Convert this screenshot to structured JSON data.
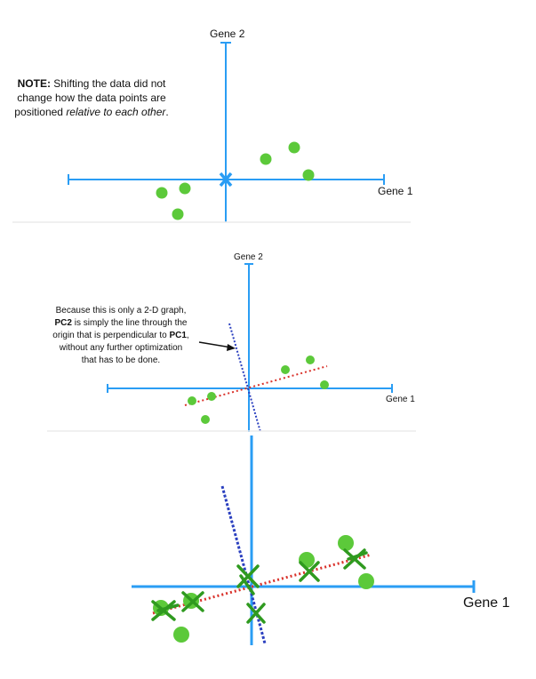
{
  "panel1": {
    "y_axis_label": "Gene 2",
    "x_axis_label": "Gene 1",
    "note": {
      "prefix": "NOTE:",
      "text_a": " Shifting the data did not change how the data points are positioned ",
      "emphasis": "relative to each other",
      "text_b": "."
    },
    "colors": {
      "axis": "#2a9df4",
      "points": "#5cc93a",
      "origin_marker": "#2a9df4"
    },
    "origin_marker_icon": "x-mark-icon"
  },
  "panel2": {
    "y_axis_label": "Gene 2",
    "x_axis_label": "Gene 1",
    "note": {
      "text_a": "Because this is only a 2-D graph, ",
      "pc2": "PC2",
      "text_b": " is simply the line through the origin that is perpendicular to ",
      "pc1": "PC1",
      "text_c": ", without any further optimization that has to be done."
    },
    "colors": {
      "axis": "#2a9df4",
      "points": "#5cc93a",
      "pc1_line": "#d9322b",
      "pc2_line": "#2a3fbf",
      "arrow": "#111111"
    }
  },
  "panel3": {
    "x_axis_label": "Gene 1",
    "colors": {
      "axis": "#2a9df4",
      "points": "#5cc93a",
      "projections": "#2f9a1f",
      "pc1_line": "#d9322b",
      "pc2_line": "#2a3fbf"
    }
  }
}
